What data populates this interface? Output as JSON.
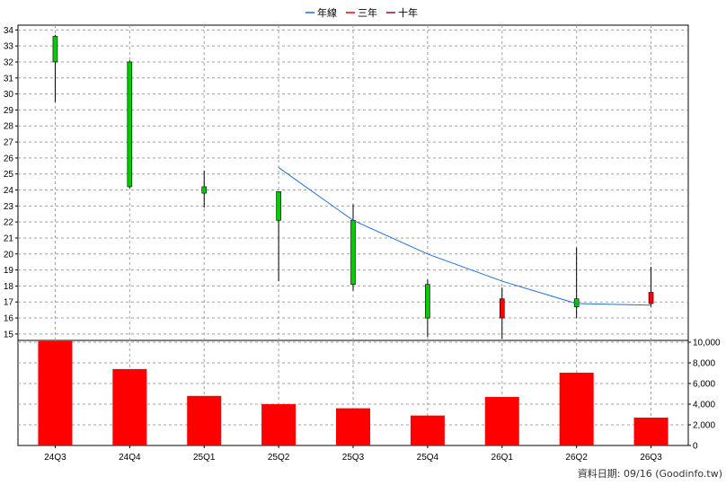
{
  "chart_data": {
    "type": "candlestick+bar",
    "legend": [
      {
        "label": "年線",
        "color": "#1f6fd0"
      },
      {
        "label": "三年",
        "color": "#ff0000"
      },
      {
        "label": "十年",
        "color": "#aa0033"
      }
    ],
    "categories": [
      "24Q3",
      "24Q4",
      "25Q1",
      "25Q2",
      "25Q3",
      "25Q4",
      "26Q1",
      "26Q2",
      "26Q3"
    ],
    "price_axis": {
      "ylim": [
        14.6,
        34.3
      ],
      "ticks": [
        15,
        16,
        17,
        18,
        19,
        20,
        21,
        22,
        23,
        24,
        25,
        26,
        27,
        28,
        29,
        30,
        31,
        32,
        33,
        34
      ]
    },
    "candles": [
      {
        "open": 32.0,
        "close": 33.6,
        "high": 33.7,
        "low": 29.5,
        "color": "green"
      },
      {
        "open": 24.2,
        "close": 32.0,
        "high": 32.1,
        "low": 24.1,
        "color": "green"
      },
      {
        "open": 23.8,
        "close": 24.2,
        "high": 25.2,
        "low": 22.9,
        "color": "green"
      },
      {
        "open": 22.1,
        "close": 23.9,
        "high": 23.9,
        "low": 18.3,
        "color": "green"
      },
      {
        "open": 18.1,
        "close": 22.1,
        "high": 23.1,
        "low": 17.7,
        "color": "green"
      },
      {
        "open": 16.0,
        "close": 18.1,
        "high": 18.4,
        "low": 14.8,
        "color": "green"
      },
      {
        "open": 16.0,
        "close": 17.2,
        "high": 17.9,
        "low": 14.7,
        "color": "red"
      },
      {
        "open": 16.7,
        "close": 17.2,
        "high": 20.4,
        "low": 16.0,
        "color": "green"
      },
      {
        "open": 16.9,
        "close": 17.6,
        "high": 19.2,
        "low": 16.7,
        "color": "red"
      }
    ],
    "annual_line": {
      "name": "年線",
      "values": [
        null,
        null,
        null,
        25.4,
        22.1,
        20.0,
        18.3,
        16.9,
        16.8
      ]
    },
    "volume_axis": {
      "ylim": [
        0,
        10000
      ],
      "ticks": [
        0,
        2000,
        4000,
        6000,
        8000,
        10000
      ],
      "tick_labels": [
        "0",
        "2,000",
        "4,000",
        "6,000",
        "8,000",
        "10,000"
      ]
    },
    "volumes": [
      10100,
      7400,
      4800,
      4000,
      3600,
      2900,
      4700,
      7050,
      2700
    ],
    "grid": true
  },
  "footer": {
    "credit": "資料日期: 09/16  (Goodinfo.tw)"
  }
}
